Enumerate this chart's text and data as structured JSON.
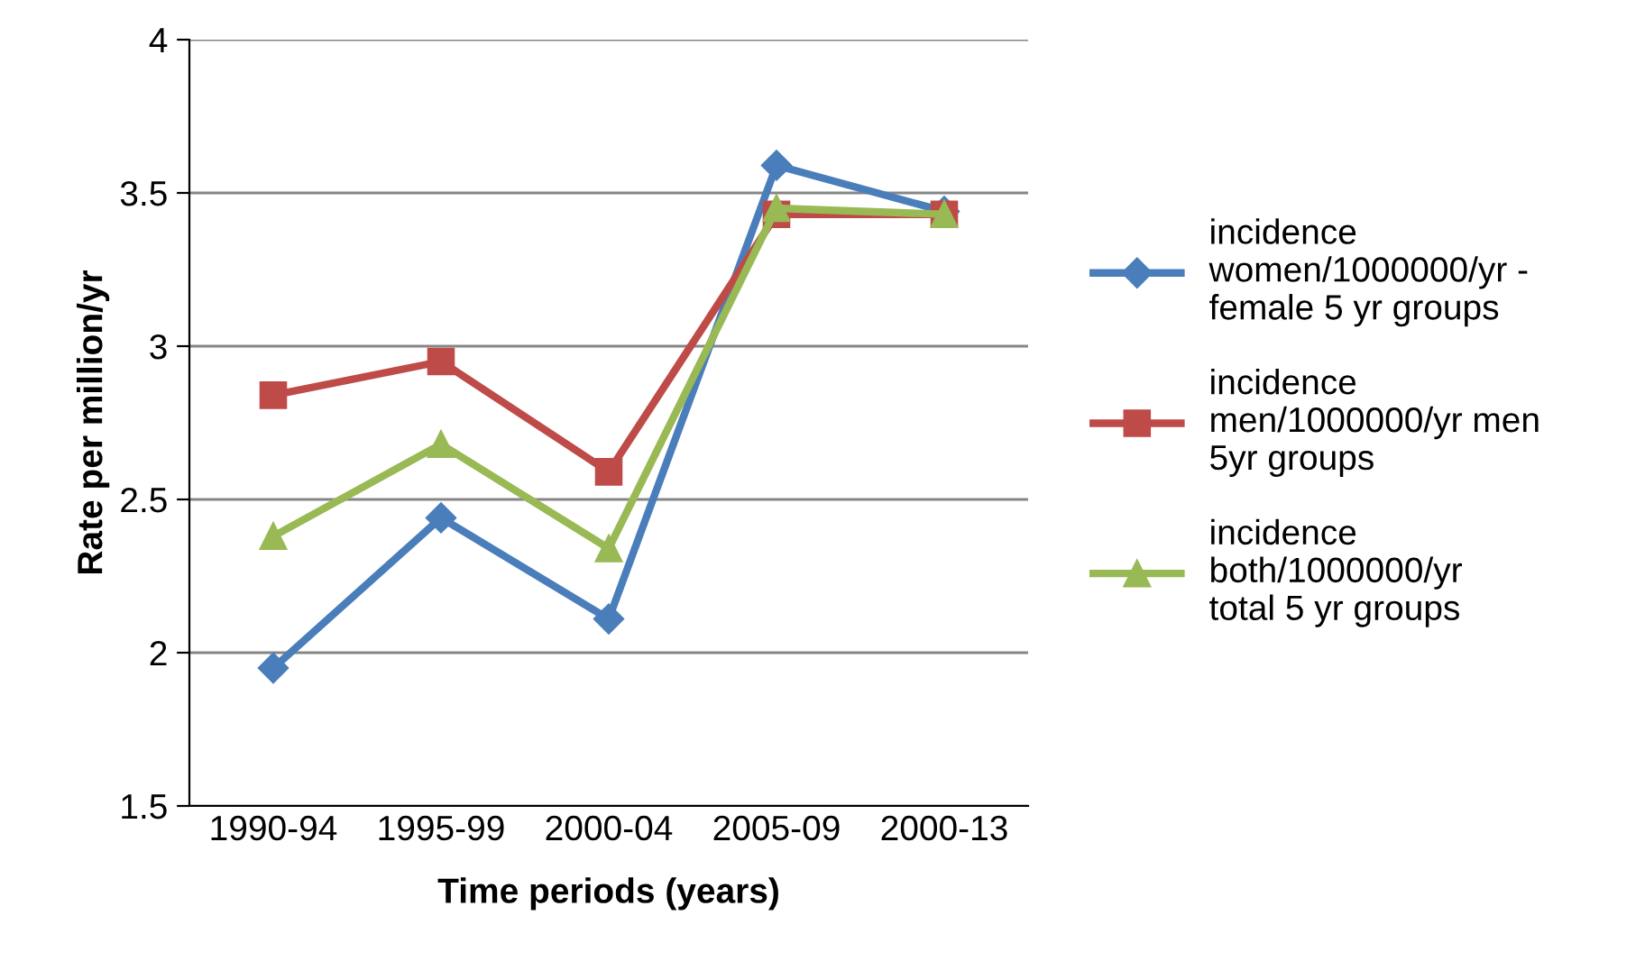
{
  "chart_data": {
    "type": "line",
    "xlabel": "Time periods (years)",
    "ylabel": "Rate per million/yr",
    "categories": [
      "1990-94",
      "1995-99",
      "2000-04",
      "2005-09",
      "2000-13"
    ],
    "series": [
      {
        "name": "incidence women/1000000/yr - female 5 yr groups",
        "color": "#4a7ebb",
        "marker": "diamond",
        "values": [
          1.95,
          2.44,
          2.11,
          3.59,
          3.44
        ]
      },
      {
        "name": "incidence men/1000000/yr men 5yr groups",
        "color": "#be4b48",
        "marker": "square",
        "values": [
          2.84,
          2.95,
          2.59,
          3.43,
          3.43
        ]
      },
      {
        "name": "incidence both/1000000/yr total 5 yr groups",
        "color": "#98b954",
        "marker": "triangle",
        "values": [
          2.38,
          2.68,
          2.34,
          3.45,
          3.43
        ]
      }
    ],
    "ylim": [
      1.5,
      4
    ],
    "yticks": [
      1.5,
      2,
      2.5,
      3,
      3.5,
      4
    ],
    "grid": "y",
    "legend": "right"
  }
}
